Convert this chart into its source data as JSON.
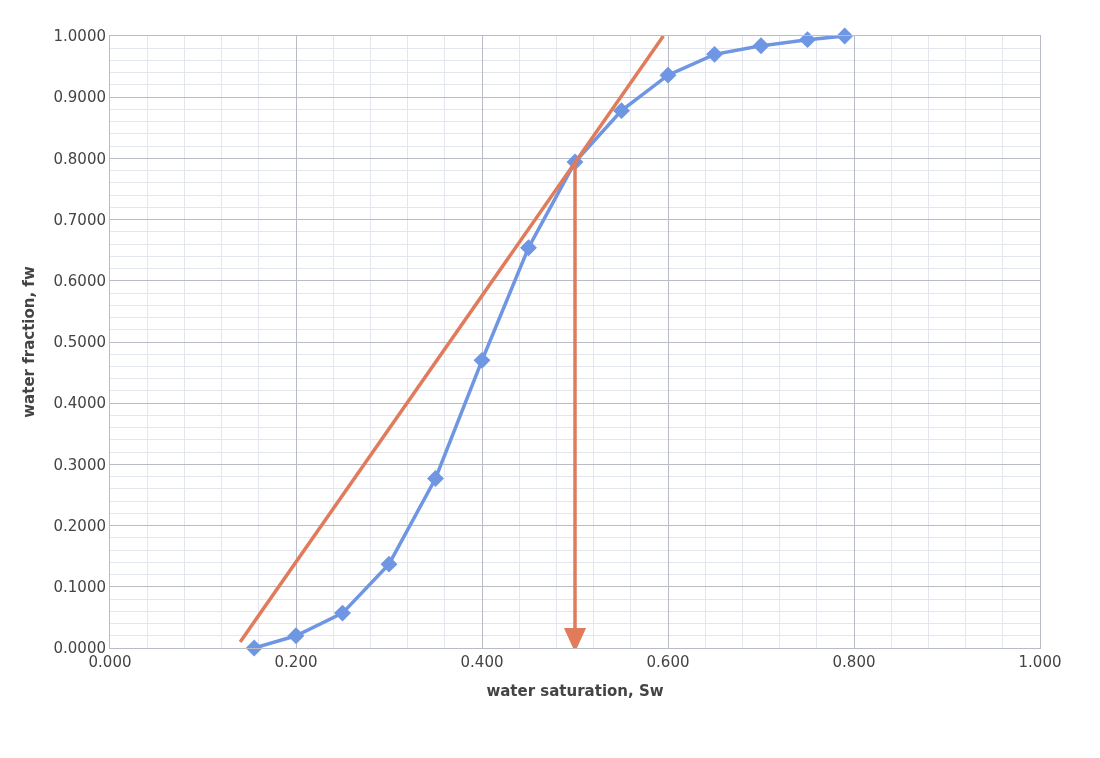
{
  "chart_data": {
    "type": "line",
    "xlabel": "water saturation, Sw",
    "ylabel": "water fraction, fw",
    "xlim": [
      0,
      1
    ],
    "ylim": [
      0,
      1
    ],
    "xticks": [
      {
        "value": 0,
        "label": "0.000"
      },
      {
        "value": 0.2,
        "label": "0.200"
      },
      {
        "value": 0.4,
        "label": "0.400"
      },
      {
        "value": 0.6,
        "label": "0.600"
      },
      {
        "value": 0.8,
        "label": "0.800"
      },
      {
        "value": 1,
        "label": "1.000"
      }
    ],
    "yticks": [
      {
        "value": 0,
        "label": "0.0000"
      },
      {
        "value": 0.1,
        "label": "0.1000"
      },
      {
        "value": 0.2,
        "label": "0.2000"
      },
      {
        "value": 0.3,
        "label": "0.3000"
      },
      {
        "value": 0.4,
        "label": "0.4000"
      },
      {
        "value": 0.5,
        "label": "0.5000"
      },
      {
        "value": 0.6,
        "label": "0.6000"
      },
      {
        "value": 0.7,
        "label": "0.7000"
      },
      {
        "value": 0.8,
        "label": "0.8000"
      },
      {
        "value": 0.9,
        "label": "0.9000"
      },
      {
        "value": 1,
        "label": "1.0000"
      }
    ],
    "grid": true,
    "series": [
      {
        "color": "#6f96e3",
        "marker": "diamond",
        "x": [
          0.155,
          0.2,
          0.25,
          0.3,
          0.35,
          0.4,
          0.45,
          0.5,
          0.55,
          0.6,
          0.65,
          0.7,
          0.75,
          0.79
        ],
        "values": [
          0,
          0.02,
          0.057,
          0.137,
          0.277,
          0.47,
          0.654,
          0.794,
          0.878,
          0.936,
          0.97,
          0.984,
          0.994,
          1.0
        ]
      },
      {
        "color": "#e07b5b",
        "marker": "none",
        "x": [
          0.14,
          0.595
        ],
        "values": [
          0.01,
          1.0
        ]
      }
    ],
    "ref_lines": [
      {
        "axis": "x",
        "value": 0.5,
        "color": "#e07b5b",
        "line_style": "solid"
      }
    ]
  }
}
